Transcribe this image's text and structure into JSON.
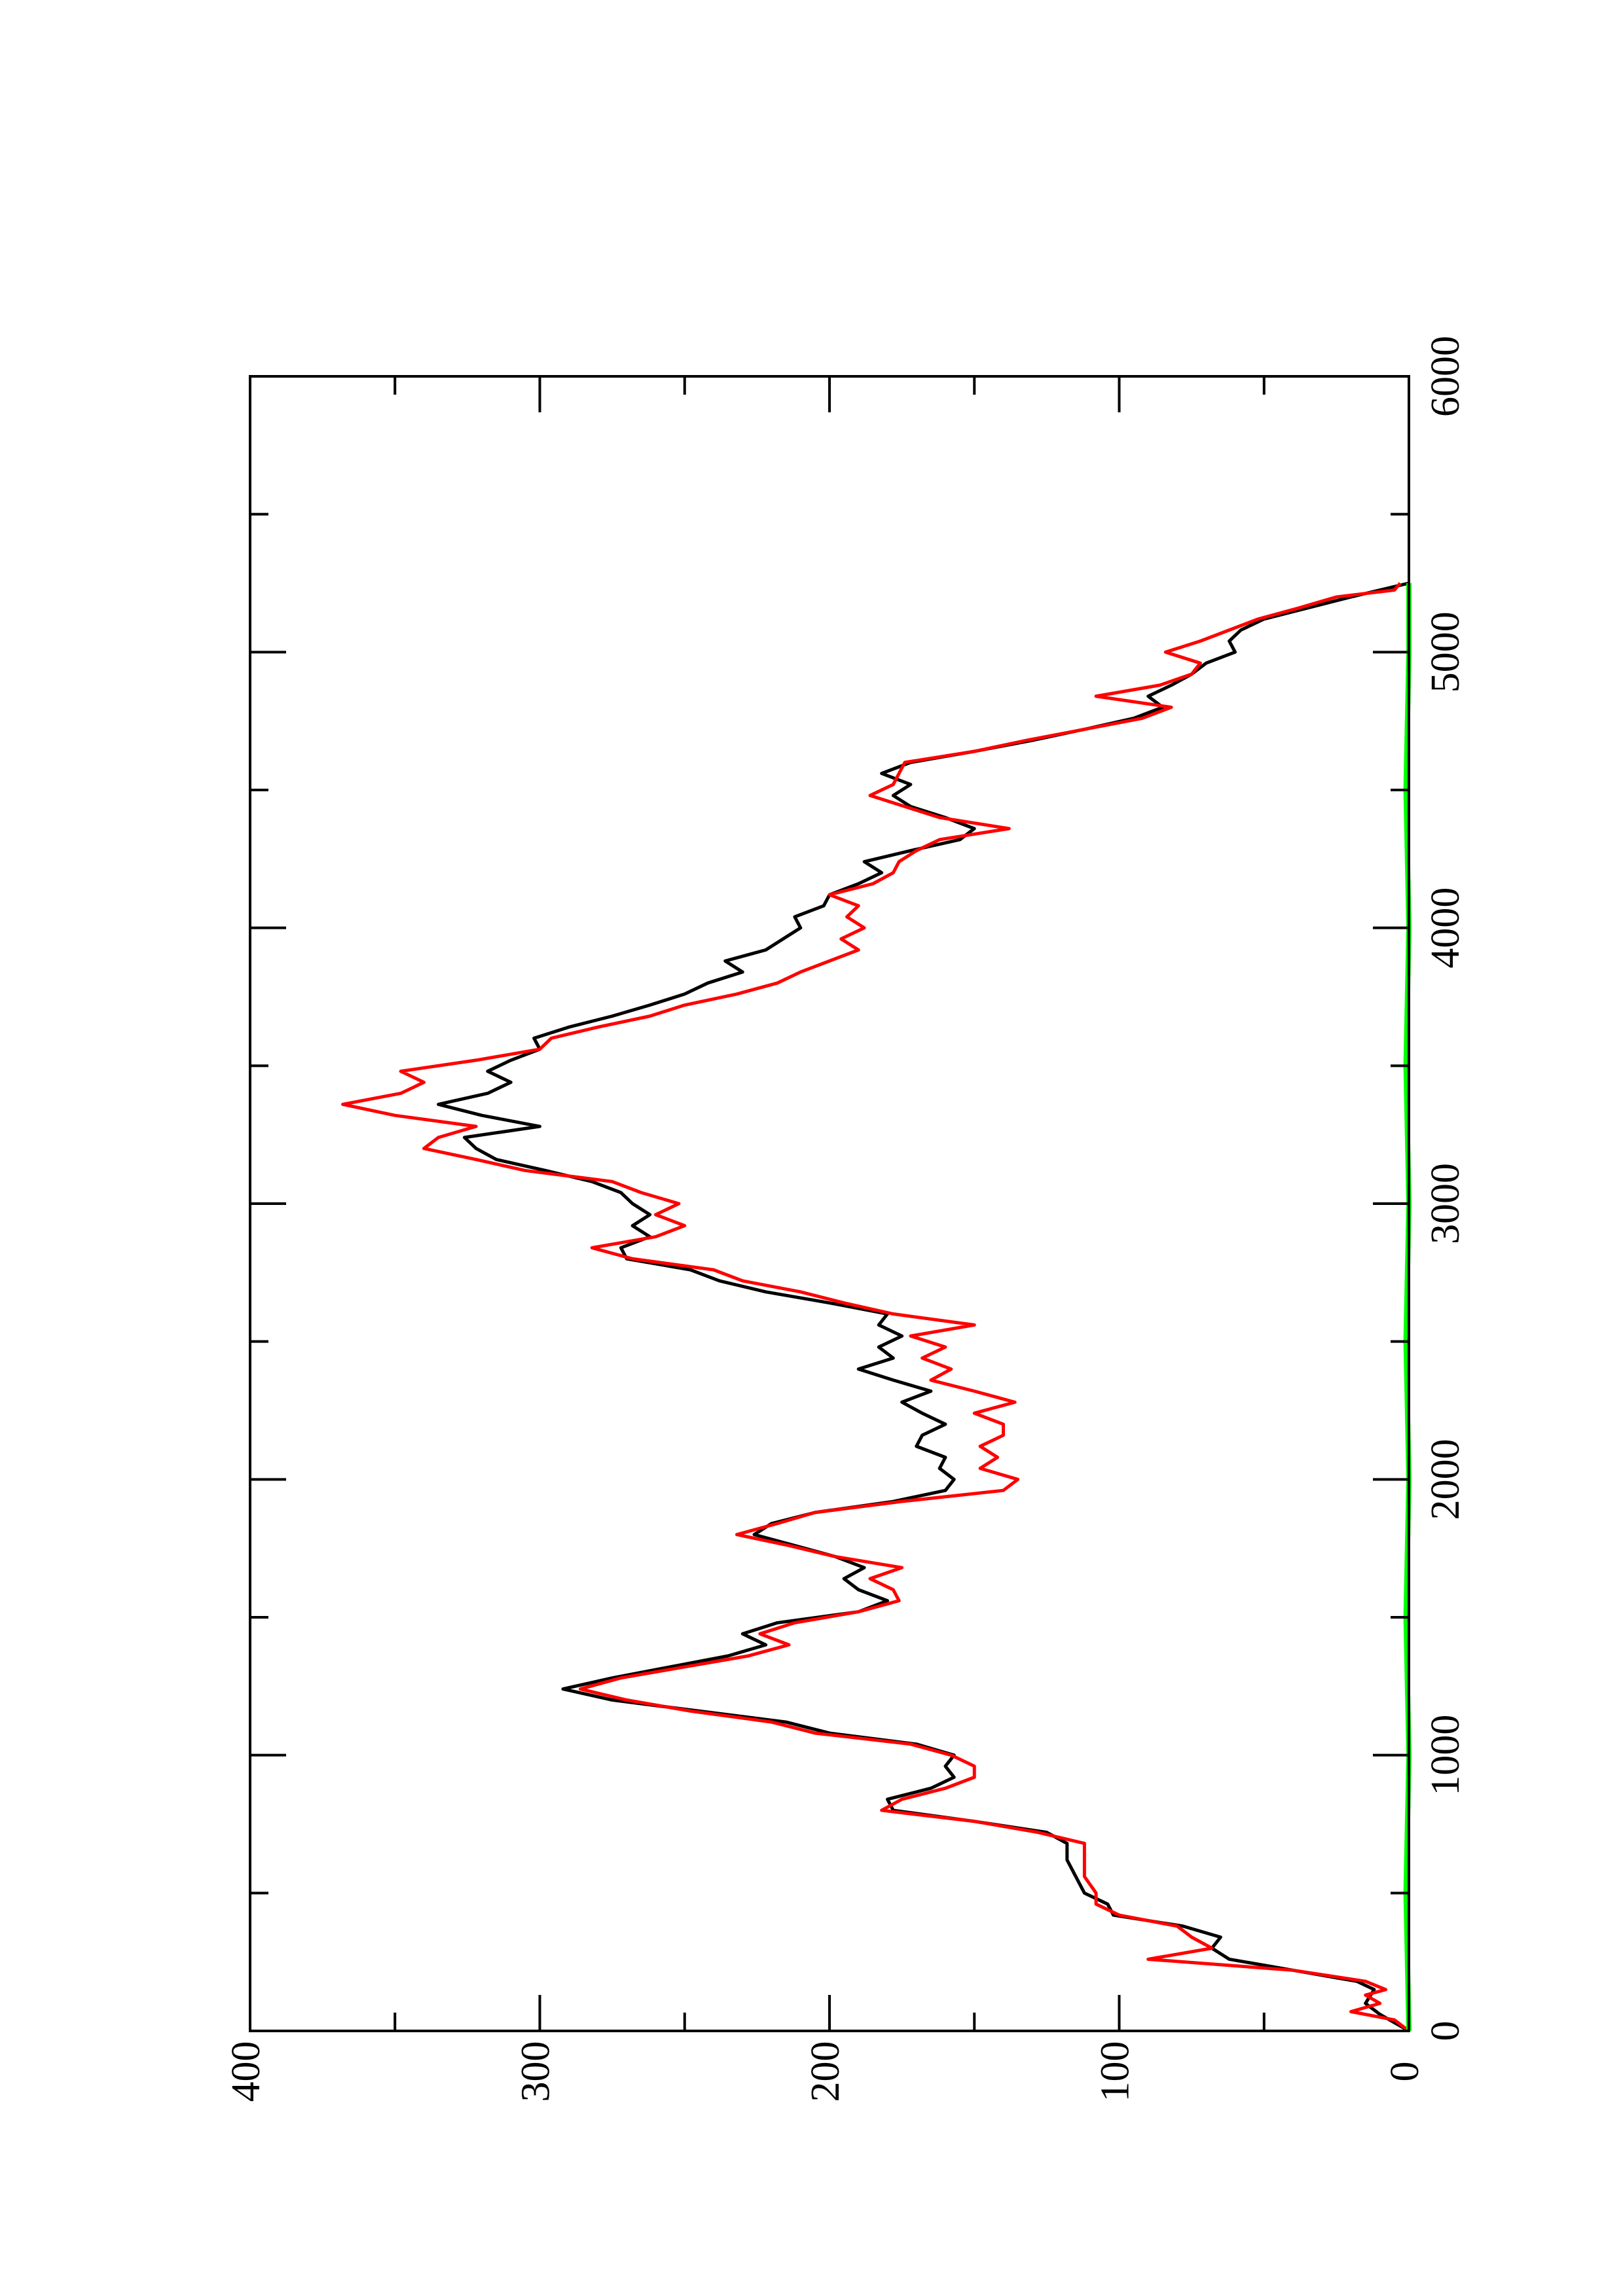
{
  "chart_data": {
    "type": "line",
    "title": "",
    "xlabel": "",
    "ylabel": "",
    "orientation": "rotated 90 degrees counter-clockwise (x axis runs bottom-to-top along the right side)",
    "xlim": [
      0,
      6000
    ],
    "ylim": [
      0,
      400
    ],
    "x_ticks": [
      "0",
      "1000",
      "2000",
      "3000",
      "4000",
      "5000",
      "6000"
    ],
    "y_ticks": [
      "0",
      "100",
      "200",
      "300",
      "400"
    ],
    "grid": false,
    "legend": "none",
    "series": [
      {
        "color": "#000000",
        "points": [
          [
            0,
            0
          ],
          [
            60,
            10
          ],
          [
            100,
            15
          ],
          [
            150,
            12
          ],
          [
            180,
            18
          ],
          [
            220,
            40
          ],
          [
            260,
            62
          ],
          [
            300,
            68
          ],
          [
            340,
            65
          ],
          [
            380,
            78
          ],
          [
            420,
            102
          ],
          [
            460,
            104
          ],
          [
            500,
            112
          ],
          [
            560,
            115
          ],
          [
            620,
            118
          ],
          [
            680,
            118
          ],
          [
            720,
            125
          ],
          [
            760,
            150
          ],
          [
            800,
            178
          ],
          [
            840,
            180
          ],
          [
            880,
            165
          ],
          [
            920,
            157
          ],
          [
            960,
            160
          ],
          [
            1000,
            157
          ],
          [
            1040,
            170
          ],
          [
            1080,
            200
          ],
          [
            1120,
            215
          ],
          [
            1160,
            245
          ],
          [
            1200,
            275
          ],
          [
            1240,
            292
          ],
          [
            1280,
            275
          ],
          [
            1320,
            255
          ],
          [
            1360,
            235
          ],
          [
            1400,
            222
          ],
          [
            1440,
            230
          ],
          [
            1480,
            218
          ],
          [
            1520,
            190
          ],
          [
            1560,
            180
          ],
          [
            1600,
            190
          ],
          [
            1640,
            195
          ],
          [
            1680,
            188
          ],
          [
            1720,
            198
          ],
          [
            1760,
            212
          ],
          [
            1800,
            226
          ],
          [
            1840,
            220
          ],
          [
            1880,
            205
          ],
          [
            1920,
            178
          ],
          [
            1960,
            160
          ],
          [
            2000,
            157
          ],
          [
            2040,
            162
          ],
          [
            2080,
            160
          ],
          [
            2120,
            170
          ],
          [
            2160,
            168
          ],
          [
            2200,
            160
          ],
          [
            2240,
            168
          ],
          [
            2280,
            175
          ],
          [
            2320,
            165
          ],
          [
            2360,
            178
          ],
          [
            2400,
            190
          ],
          [
            2440,
            178
          ],
          [
            2480,
            183
          ],
          [
            2520,
            175
          ],
          [
            2560,
            183
          ],
          [
            2600,
            180
          ],
          [
            2640,
            200
          ],
          [
            2680,
            222
          ],
          [
            2720,
            238
          ],
          [
            2760,
            248
          ],
          [
            2800,
            270
          ],
          [
            2840,
            272
          ],
          [
            2880,
            262
          ],
          [
            2920,
            268
          ],
          [
            2960,
            262
          ],
          [
            3000,
            268
          ],
          [
            3040,
            272
          ],
          [
            3080,
            282
          ],
          [
            3120,
            298
          ],
          [
            3160,
            315
          ],
          [
            3200,
            322
          ],
          [
            3240,
            326
          ],
          [
            3280,
            300
          ],
          [
            3320,
            320
          ],
          [
            3360,
            335
          ],
          [
            3400,
            318
          ],
          [
            3440,
            310
          ],
          [
            3480,
            318
          ],
          [
            3520,
            310
          ],
          [
            3560,
            300
          ],
          [
            3600,
            302
          ],
          [
            3640,
            290
          ],
          [
            3680,
            275
          ],
          [
            3720,
            262
          ],
          [
            3760,
            250
          ],
          [
            3800,
            242
          ],
          [
            3840,
            230
          ],
          [
            3880,
            236
          ],
          [
            3920,
            222
          ],
          [
            3960,
            216
          ],
          [
            4000,
            210
          ],
          [
            4040,
            212
          ],
          [
            4080,
            202
          ],
          [
            4120,
            200
          ],
          [
            4160,
            190
          ],
          [
            4200,
            182
          ],
          [
            4240,
            188
          ],
          [
            4280,
            172
          ],
          [
            4320,
            155
          ],
          [
            4360,
            150
          ],
          [
            4400,
            160
          ],
          [
            4440,
            172
          ],
          [
            4480,
            178
          ],
          [
            4520,
            172
          ],
          [
            4560,
            182
          ],
          [
            4600,
            172
          ],
          [
            4640,
            150
          ],
          [
            4680,
            130
          ],
          [
            4720,
            112
          ],
          [
            4760,
            95
          ],
          [
            4800,
            85
          ],
          [
            4840,
            90
          ],
          [
            4880,
            82
          ],
          [
            4920,
            75
          ],
          [
            4960,
            70
          ],
          [
            5000,
            60
          ],
          [
            5040,
            62
          ],
          [
            5080,
            58
          ],
          [
            5120,
            50
          ],
          [
            5160,
            35
          ],
          [
            5200,
            20
          ],
          [
            5250,
            0
          ]
        ]
      },
      {
        "color": "#ff0000",
        "points": [
          [
            0,
            0
          ],
          [
            40,
            5
          ],
          [
            70,
            20
          ],
          [
            100,
            10
          ],
          [
            130,
            15
          ],
          [
            150,
            8
          ],
          [
            180,
            15
          ],
          [
            220,
            40
          ],
          [
            260,
            90
          ],
          [
            300,
            68
          ],
          [
            340,
            75
          ],
          [
            380,
            80
          ],
          [
            420,
            100
          ],
          [
            460,
            108
          ],
          [
            500,
            108
          ],
          [
            560,
            112
          ],
          [
            620,
            112
          ],
          [
            680,
            112
          ],
          [
            720,
            128
          ],
          [
            760,
            150
          ],
          [
            800,
            182
          ],
          [
            840,
            175
          ],
          [
            880,
            160
          ],
          [
            920,
            150
          ],
          [
            960,
            150
          ],
          [
            1000,
            158
          ],
          [
            1040,
            172
          ],
          [
            1080,
            205
          ],
          [
            1120,
            220
          ],
          [
            1160,
            248
          ],
          [
            1200,
            270
          ],
          [
            1240,
            286
          ],
          [
            1280,
            272
          ],
          [
            1320,
            250
          ],
          [
            1360,
            228
          ],
          [
            1400,
            214
          ],
          [
            1440,
            224
          ],
          [
            1480,
            212
          ],
          [
            1520,
            190
          ],
          [
            1560,
            176
          ],
          [
            1600,
            178
          ],
          [
            1640,
            186
          ],
          [
            1680,
            175
          ],
          [
            1720,
            198
          ],
          [
            1760,
            214
          ],
          [
            1800,
            232
          ],
          [
            1840,
            218
          ],
          [
            1880,
            205
          ],
          [
            1920,
            175
          ],
          [
            1960,
            140
          ],
          [
            2000,
            135
          ],
          [
            2040,
            148
          ],
          [
            2080,
            142
          ],
          [
            2120,
            148
          ],
          [
            2160,
            140
          ],
          [
            2200,
            140
          ],
          [
            2240,
            150
          ],
          [
            2280,
            136
          ],
          [
            2320,
            150
          ],
          [
            2360,
            165
          ],
          [
            2400,
            158
          ],
          [
            2440,
            168
          ],
          [
            2480,
            160
          ],
          [
            2520,
            172
          ],
          [
            2560,
            150
          ],
          [
            2600,
            178
          ],
          [
            2640,
            195
          ],
          [
            2680,
            210
          ],
          [
            2720,
            230
          ],
          [
            2760,
            240
          ],
          [
            2800,
            268
          ],
          [
            2840,
            282
          ],
          [
            2880,
            260
          ],
          [
            2920,
            250
          ],
          [
            2960,
            260
          ],
          [
            3000,
            252
          ],
          [
            3040,
            265
          ],
          [
            3080,
            275
          ],
          [
            3120,
            305
          ],
          [
            3160,
            322
          ],
          [
            3200,
            340
          ],
          [
            3240,
            335
          ],
          [
            3280,
            322
          ],
          [
            3320,
            350
          ],
          [
            3360,
            368
          ],
          [
            3400,
            348
          ],
          [
            3440,
            340
          ],
          [
            3480,
            348
          ],
          [
            3520,
            322
          ],
          [
            3560,
            300
          ],
          [
            3600,
            296
          ],
          [
            3640,
            280
          ],
          [
            3680,
            262
          ],
          [
            3720,
            250
          ],
          [
            3760,
            232
          ],
          [
            3800,
            218
          ],
          [
            3840,
            210
          ],
          [
            3880,
            200
          ],
          [
            3920,
            190
          ],
          [
            3960,
            196
          ],
          [
            4000,
            188
          ],
          [
            4040,
            194
          ],
          [
            4080,
            190
          ],
          [
            4120,
            200
          ],
          [
            4160,
            185
          ],
          [
            4200,
            178
          ],
          [
            4240,
            176
          ],
          [
            4280,
            170
          ],
          [
            4320,
            162
          ],
          [
            4360,
            138
          ],
          [
            4400,
            162
          ],
          [
            4440,
            174
          ],
          [
            4480,
            186
          ],
          [
            4520,
            178
          ],
          [
            4560,
            176
          ],
          [
            4600,
            174
          ],
          [
            4640,
            150
          ],
          [
            4680,
            132
          ],
          [
            4720,
            112
          ],
          [
            4760,
            92
          ],
          [
            4800,
            82
          ],
          [
            4840,
            108
          ],
          [
            4880,
            86
          ],
          [
            4920,
            75
          ],
          [
            4960,
            72
          ],
          [
            5000,
            84
          ],
          [
            5040,
            72
          ],
          [
            5080,
            62
          ],
          [
            5120,
            52
          ],
          [
            5160,
            38
          ],
          [
            5200,
            25
          ],
          [
            5225,
            5
          ],
          [
            5250,
            3
          ]
        ]
      },
      {
        "color": "#00ff00",
        "points": [
          [
            0,
            0
          ],
          [
            500,
            1
          ],
          [
            1000,
            0
          ],
          [
            1500,
            1
          ],
          [
            2000,
            0
          ],
          [
            2500,
            1
          ],
          [
            3000,
            0
          ],
          [
            3500,
            1
          ],
          [
            4000,
            0
          ],
          [
            4500,
            1
          ],
          [
            5000,
            0
          ],
          [
            5250,
            0
          ]
        ]
      }
    ]
  }
}
